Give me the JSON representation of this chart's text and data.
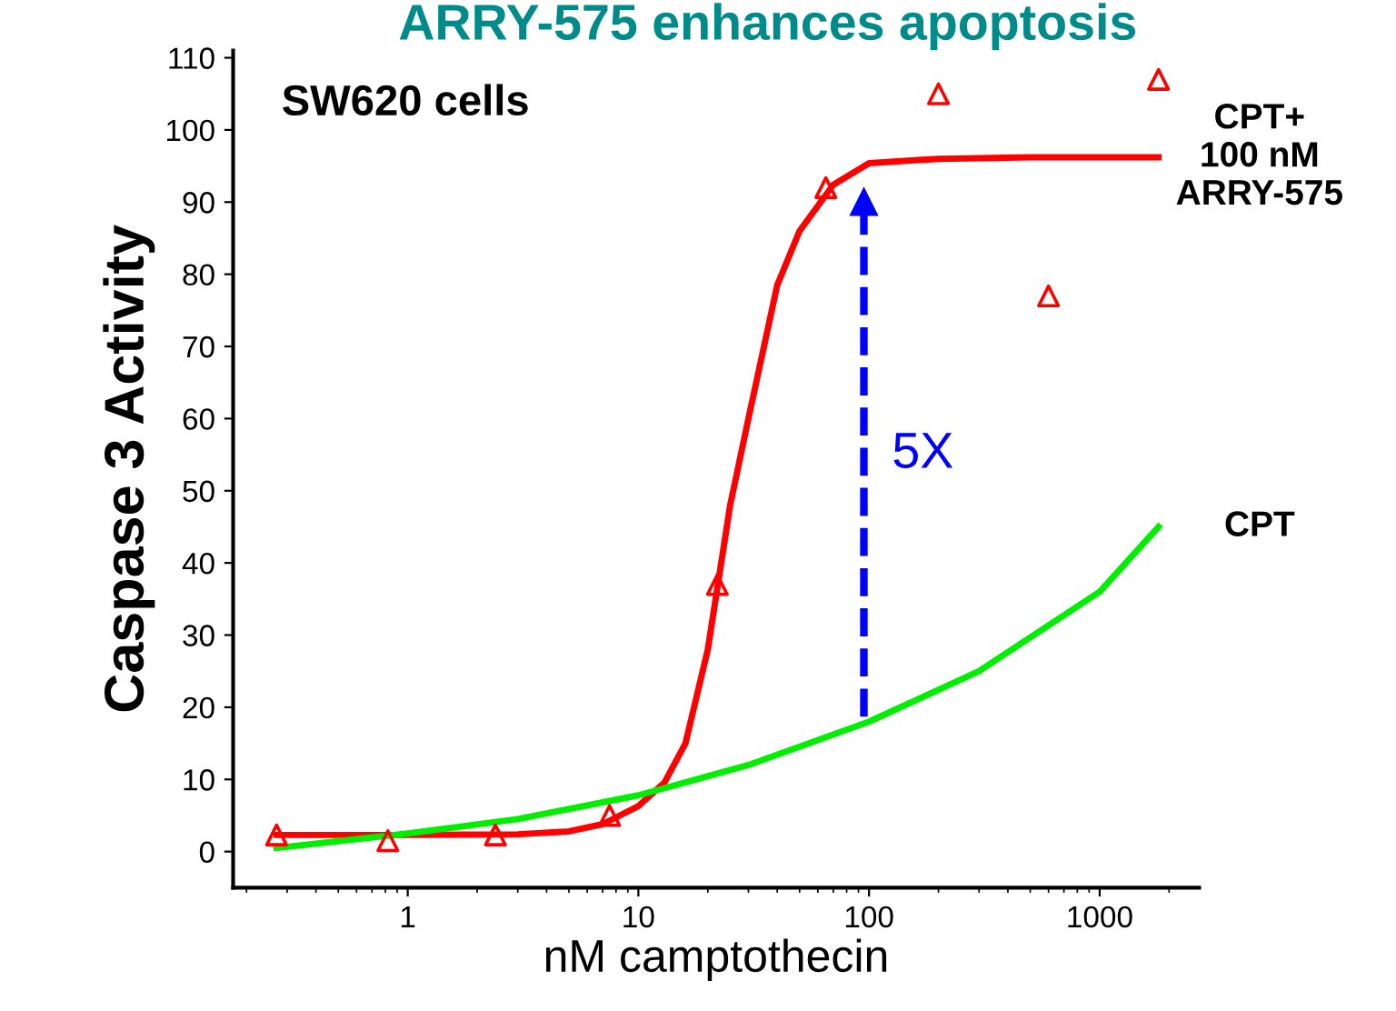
{
  "chart_data": {
    "type": "line",
    "title": "ARRY-575 enhances apoptosis",
    "xlabel": "nM camptothecin",
    "ylabel": "Caspase 3 Activity",
    "log": "x",
    "xlim": [
      0.175,
      2700
    ],
    "xticks": [
      1,
      10,
      100,
      1000
    ],
    "ylim": [
      -5,
      111
    ],
    "yticks": [
      0,
      10,
      20,
      30,
      40,
      50,
      60,
      70,
      80,
      90,
      100,
      110
    ],
    "grid": false,
    "legend": false,
    "series": [
      {
        "name": "CPT+\n100 nM\nARRY-575",
        "color": "#ff0000",
        "line_style": "solid",
        "marker": "none",
        "x": [
          0.27,
          1,
          3,
          5,
          7,
          10,
          13,
          16,
          20,
          25,
          30,
          40,
          50,
          70,
          100,
          200,
          500,
          1800
        ],
        "values": [
          2.3,
          2.3,
          2.4,
          2.8,
          3.8,
          6.3,
          9.6,
          15,
          28,
          48,
          60,
          78.5,
          86,
          92.4,
          95.4,
          96,
          96.2,
          96.2
        ]
      },
      {
        "type": "scatter",
        "color": "#ff0000",
        "marker": "triangle",
        "x": [
          0.27,
          0.82,
          2.4,
          7.5,
          22,
          65,
          200,
          600,
          1800
        ],
        "values": [
          2.3,
          1.5,
          2.3,
          5,
          37,
          92,
          105,
          77,
          107
        ]
      },
      {
        "name": "CPT",
        "color": "#00ee00",
        "line_style": "solid",
        "marker": "none",
        "x": [
          0.27,
          1,
          3,
          10,
          30,
          100,
          300,
          1000,
          1800
        ],
        "values": [
          0.5,
          2.5,
          4.5,
          7.8,
          12,
          18,
          25,
          36,
          45
        ]
      },
      {
        "color": "#0000ff",
        "line_style": "dashed",
        "marker": "triangle",
        "x": [
          95,
          95
        ],
        "values": [
          18.7,
          90
        ]
      }
    ],
    "annotations": [
      "SW620 cells",
      {
        "text": "5X",
        "x": 95,
        "y": 55
      }
    ]
  }
}
